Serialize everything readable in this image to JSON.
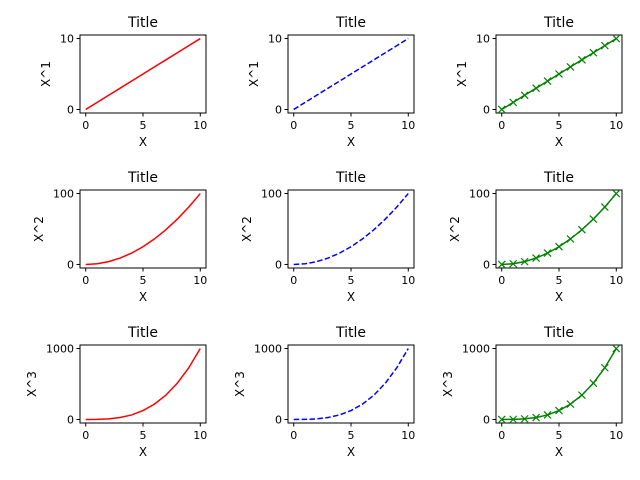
{
  "chart_data": [
    {
      "type": "line",
      "title": "Title",
      "xlabel": "X",
      "ylabel": "X^1",
      "x": [
        0,
        1,
        2,
        3,
        4,
        5,
        6,
        7,
        8,
        9,
        10
      ],
      "series": [
        {
          "values": [
            0,
            1,
            2,
            3,
            4,
            5,
            6,
            7,
            8,
            9,
            10
          ],
          "color": "#ff0000",
          "linestyle": "solid",
          "marker": "none"
        }
      ],
      "xlim": [
        0,
        10
      ],
      "ylim": [
        0,
        10
      ],
      "xticks": [
        "0",
        "5",
        "10"
      ],
      "yticks": [
        "0",
        "10"
      ],
      "grid": false
    },
    {
      "type": "line",
      "title": "Title",
      "xlabel": "X",
      "ylabel": "X^1",
      "x": [
        0,
        1,
        2,
        3,
        4,
        5,
        6,
        7,
        8,
        9,
        10
      ],
      "series": [
        {
          "values": [
            0,
            1,
            2,
            3,
            4,
            5,
            6,
            7,
            8,
            9,
            10
          ],
          "color": "#0000ff",
          "linestyle": "dashed",
          "marker": "none"
        }
      ],
      "xlim": [
        0,
        10
      ],
      "ylim": [
        0,
        10
      ],
      "xticks": [
        "0",
        "5",
        "10"
      ],
      "yticks": [
        "0",
        "10"
      ],
      "grid": false
    },
    {
      "type": "line",
      "title": "Title",
      "xlabel": "X",
      "ylabel": "X^1",
      "x": [
        0,
        1,
        2,
        3,
        4,
        5,
        6,
        7,
        8,
        9,
        10
      ],
      "series": [
        {
          "values": [
            0,
            1,
            2,
            3,
            4,
            5,
            6,
            7,
            8,
            9,
            10
          ],
          "color": "#008000",
          "linestyle": "solid",
          "marker": "x"
        }
      ],
      "xlim": [
        0,
        10
      ],
      "ylim": [
        0,
        10
      ],
      "xticks": [
        "0",
        "5",
        "10"
      ],
      "yticks": [
        "0",
        "10"
      ],
      "grid": false
    },
    {
      "type": "line",
      "title": "Title",
      "xlabel": "X",
      "ylabel": "X^2",
      "x": [
        0,
        1,
        2,
        3,
        4,
        5,
        6,
        7,
        8,
        9,
        10
      ],
      "series": [
        {
          "values": [
            0,
            1,
            4,
            9,
            16,
            25,
            36,
            49,
            64,
            81,
            100
          ],
          "color": "#ff0000",
          "linestyle": "solid",
          "marker": "none"
        }
      ],
      "xlim": [
        0,
        10
      ],
      "ylim": [
        0,
        100
      ],
      "xticks": [
        "0",
        "5",
        "10"
      ],
      "yticks": [
        "0",
        "100"
      ],
      "grid": false
    },
    {
      "type": "line",
      "title": "Title",
      "xlabel": "X",
      "ylabel": "X^2",
      "x": [
        0,
        1,
        2,
        3,
        4,
        5,
        6,
        7,
        8,
        9,
        10
      ],
      "series": [
        {
          "values": [
            0,
            1,
            4,
            9,
            16,
            25,
            36,
            49,
            64,
            81,
            100
          ],
          "color": "#0000ff",
          "linestyle": "dashed",
          "marker": "none"
        }
      ],
      "xlim": [
        0,
        10
      ],
      "ylim": [
        0,
        100
      ],
      "xticks": [
        "0",
        "5",
        "10"
      ],
      "yticks": [
        "0",
        "100"
      ],
      "grid": false
    },
    {
      "type": "line",
      "title": "Title",
      "xlabel": "X",
      "ylabel": "X^2",
      "x": [
        0,
        1,
        2,
        3,
        4,
        5,
        6,
        7,
        8,
        9,
        10
      ],
      "series": [
        {
          "values": [
            0,
            1,
            4,
            9,
            16,
            25,
            36,
            49,
            64,
            81,
            100
          ],
          "color": "#008000",
          "linestyle": "solid",
          "marker": "x"
        }
      ],
      "xlim": [
        0,
        10
      ],
      "ylim": [
        0,
        100
      ],
      "xticks": [
        "0",
        "5",
        "10"
      ],
      "yticks": [
        "0",
        "100"
      ],
      "grid": false
    },
    {
      "type": "line",
      "title": "Title",
      "xlabel": "X",
      "ylabel": "X^3",
      "x": [
        0,
        1,
        2,
        3,
        4,
        5,
        6,
        7,
        8,
        9,
        10
      ],
      "series": [
        {
          "values": [
            0,
            1,
            8,
            27,
            64,
            125,
            216,
            343,
            512,
            729,
            1000
          ],
          "color": "#ff0000",
          "linestyle": "solid",
          "marker": "none"
        }
      ],
      "xlim": [
        0,
        10
      ],
      "ylim": [
        0,
        1000
      ],
      "xticks": [
        "0",
        "5",
        "10"
      ],
      "yticks": [
        "0",
        "1000"
      ],
      "grid": false
    },
    {
      "type": "line",
      "title": "Title",
      "xlabel": "X",
      "ylabel": "X^3",
      "x": [
        0,
        1,
        2,
        3,
        4,
        5,
        6,
        7,
        8,
        9,
        10
      ],
      "series": [
        {
          "values": [
            0,
            1,
            8,
            27,
            64,
            125,
            216,
            343,
            512,
            729,
            1000
          ],
          "color": "#0000ff",
          "linestyle": "dashed",
          "marker": "none"
        }
      ],
      "xlim": [
        0,
        10
      ],
      "ylim": [
        0,
        1000
      ],
      "xticks": [
        "0",
        "5",
        "10"
      ],
      "yticks": [
        "0",
        "1000"
      ],
      "grid": false
    },
    {
      "type": "line",
      "title": "Title",
      "xlabel": "X",
      "ylabel": "X^3",
      "x": [
        0,
        1,
        2,
        3,
        4,
        5,
        6,
        7,
        8,
        9,
        10
      ],
      "series": [
        {
          "values": [
            0,
            1,
            8,
            27,
            64,
            125,
            216,
            343,
            512,
            729,
            1000
          ],
          "color": "#008000",
          "linestyle": "solid",
          "marker": "x"
        }
      ],
      "xlim": [
        0,
        10
      ],
      "ylim": [
        0,
        1000
      ],
      "xticks": [
        "0",
        "5",
        "10"
      ],
      "yticks": [
        "0",
        "1000"
      ],
      "grid": false
    }
  ]
}
